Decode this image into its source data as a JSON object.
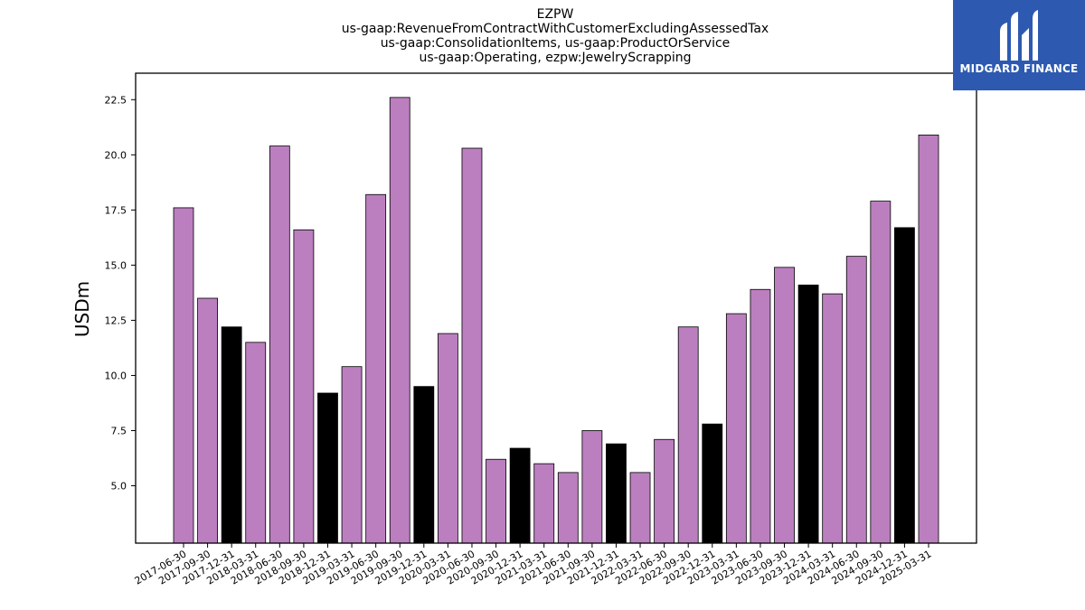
{
  "brand": {
    "name": "MIDGARD FINANCE",
    "background": "#2d5ab0"
  },
  "chart_data": {
    "type": "bar",
    "title": [
      "EZPW",
      "us-gaap:RevenueFromContractWithCustomerExcludingAssessedTax",
      "us-gaap:ConsolidationItems, us-gaap:ProductOrService",
      "us-gaap:Operating, ezpw:JewelryScrapping"
    ],
    "xlabel": "",
    "ylabel": "USDm",
    "ylim": [
      2.4,
      23.7
    ],
    "yticks": [
      "5.0",
      "7.5",
      "10.0",
      "12.5",
      "15.0",
      "17.5",
      "20.0",
      "22.5"
    ],
    "grid": false,
    "colors": {
      "default": "#bb7fbf",
      "highlight": "#000000"
    },
    "categories": [
      "2017-06-30",
      "2017-09-30",
      "2017-12-31",
      "2018-03-31",
      "2018-06-30",
      "2018-09-30",
      "2018-12-31",
      "2019-03-31",
      "2019-06-30",
      "2019-09-30",
      "2019-12-31",
      "2020-03-31",
      "2020-06-30",
      "2020-09-30",
      "2020-12-31",
      "2021-03-31",
      "2021-06-30",
      "2021-09-30",
      "2021-12-31",
      "2022-03-31",
      "2022-06-30",
      "2022-09-30",
      "2022-12-31",
      "2023-03-31",
      "2023-06-30",
      "2023-09-30",
      "2023-12-31",
      "2024-03-31",
      "2024-06-30",
      "2024-09-30",
      "2024-12-31",
      "2025-03-31"
    ],
    "values": [
      17.6,
      13.5,
      12.2,
      11.5,
      20.4,
      16.6,
      9.2,
      10.4,
      18.2,
      22.6,
      9.5,
      11.9,
      20.3,
      6.2,
      6.7,
      6.0,
      5.6,
      7.5,
      6.9,
      5.6,
      7.1,
      12.2,
      7.8,
      12.8,
      13.9,
      14.9,
      14.1,
      13.7,
      15.4,
      17.9,
      16.7,
      20.9
    ],
    "highlight": [
      false,
      false,
      true,
      false,
      false,
      false,
      true,
      false,
      false,
      false,
      true,
      false,
      false,
      false,
      true,
      false,
      false,
      false,
      true,
      false,
      false,
      false,
      true,
      false,
      false,
      false,
      true,
      false,
      false,
      false,
      true,
      false
    ]
  }
}
